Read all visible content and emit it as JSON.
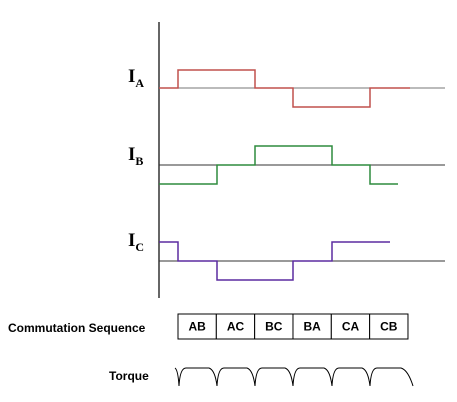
{
  "signals": [
    {
      "label": "I",
      "subscript": "A"
    },
    {
      "label": "I",
      "subscript": "B"
    },
    {
      "label": "I",
      "subscript": "C"
    }
  ],
  "commutation": {
    "title": "Commutation Sequence",
    "steps": [
      "AB",
      "AC",
      "BC",
      "BA",
      "CA",
      "CB"
    ]
  },
  "torque": {
    "title": "Torque"
  }
}
